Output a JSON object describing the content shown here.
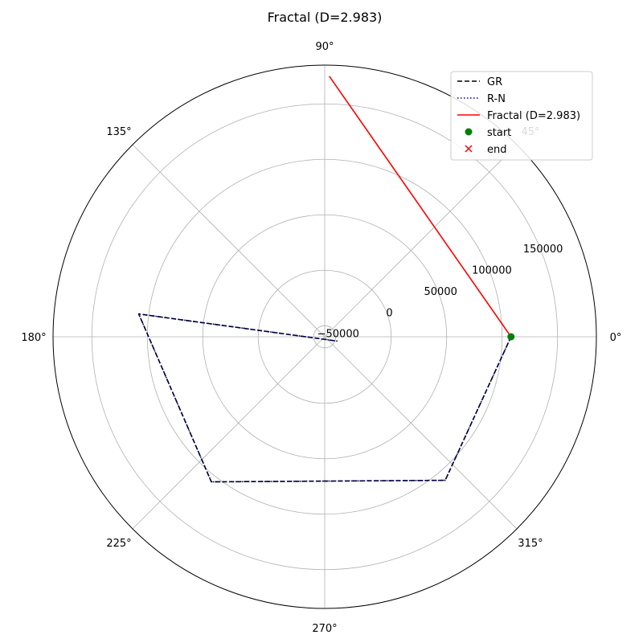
{
  "chart_data": {
    "type": "polar-line",
    "title": "Fractal (D=2.983)",
    "theta_ticks": [
      {
        "deg": 0,
        "label": "0°"
      },
      {
        "deg": 45,
        "label": "45°"
      },
      {
        "deg": 90,
        "label": "90°"
      },
      {
        "deg": 135,
        "label": "135°"
      },
      {
        "deg": 180,
        "label": "180°"
      },
      {
        "deg": 225,
        "label": "225°"
      },
      {
        "deg": 270,
        "label": "270°"
      },
      {
        "deg": 315,
        "label": "315°"
      }
    ],
    "r_range": [
      -60000,
      185000
    ],
    "r_ticks": [
      {
        "value": -50000,
        "label": "−50000"
      },
      {
        "value": 0,
        "label": "0"
      },
      {
        "value": 50000,
        "label": "50000"
      },
      {
        "value": 100000,
        "label": "100000"
      },
      {
        "value": 150000,
        "label": "150000"
      }
    ],
    "r_label_angle_deg": 22.5,
    "series": [
      {
        "name": "GR",
        "color": "#000000",
        "style": "dashed",
        "points": [
          {
            "theta": 0,
            "r": 108000
          },
          {
            "theta": 310,
            "r": 109000
          },
          {
            "theta": 232,
            "r": 106000
          },
          {
            "theta": 173,
            "r": 109000
          },
          {
            "theta": 341,
            "r": -48000
          }
        ]
      },
      {
        "name": "R-N",
        "color": "#00008b",
        "style": "dotted",
        "points": [
          {
            "theta": 0,
            "r": 108000
          },
          {
            "theta": 310,
            "r": 109000
          },
          {
            "theta": 232,
            "r": 106000
          },
          {
            "theta": 173,
            "r": 109000
          },
          {
            "theta": 341,
            "r": -48000
          }
        ]
      },
      {
        "name": "Fractal (D=2.983)",
        "color": "#ff0000",
        "style": "solid",
        "points": [
          {
            "theta": 0,
            "r": 108000
          },
          {
            "theta": 89,
            "r": 175000
          }
        ]
      }
    ],
    "markers": [
      {
        "name": "start",
        "color": "#008000",
        "shape": "circle",
        "theta": 0,
        "r": 108000
      },
      {
        "name": "end",
        "color": "#ff0000",
        "shape": "x"
      }
    ],
    "legend": {
      "position": "top-right",
      "entries": [
        {
          "label": "GR",
          "color": "#000000",
          "kind": "dashed"
        },
        {
          "label": "R-N",
          "color": "#00008b",
          "kind": "dotted"
        },
        {
          "label": "Fractal (D=2.983)",
          "color": "#ff0000",
          "kind": "solid"
        },
        {
          "label": "start",
          "color": "#008000",
          "kind": "circle"
        },
        {
          "label": "end",
          "color": "#ff0000",
          "kind": "x"
        }
      ]
    }
  }
}
